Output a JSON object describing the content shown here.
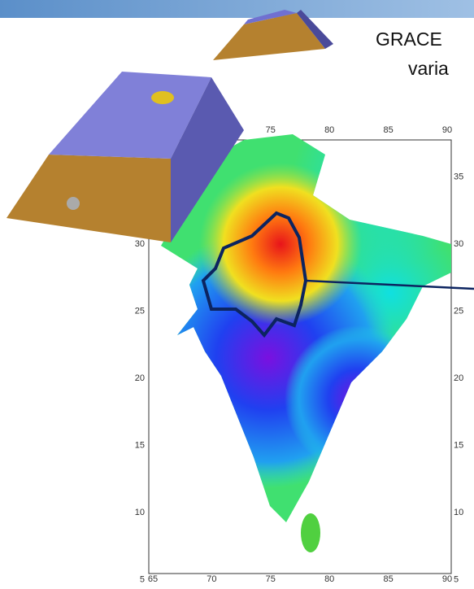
{
  "header": {
    "title": "GRACE",
    "subtitle": "varia"
  },
  "map": {
    "lon_ticks_top": [
      75,
      80,
      85,
      90
    ],
    "lon_ticks_bottom": [
      65,
      70,
      75,
      80,
      85,
      90
    ],
    "lat_ticks_left": [
      30,
      25,
      20,
      15,
      10,
      5
    ],
    "lat_ticks_right": [
      35,
      30,
      25,
      20,
      15,
      10,
      5
    ]
  }
}
